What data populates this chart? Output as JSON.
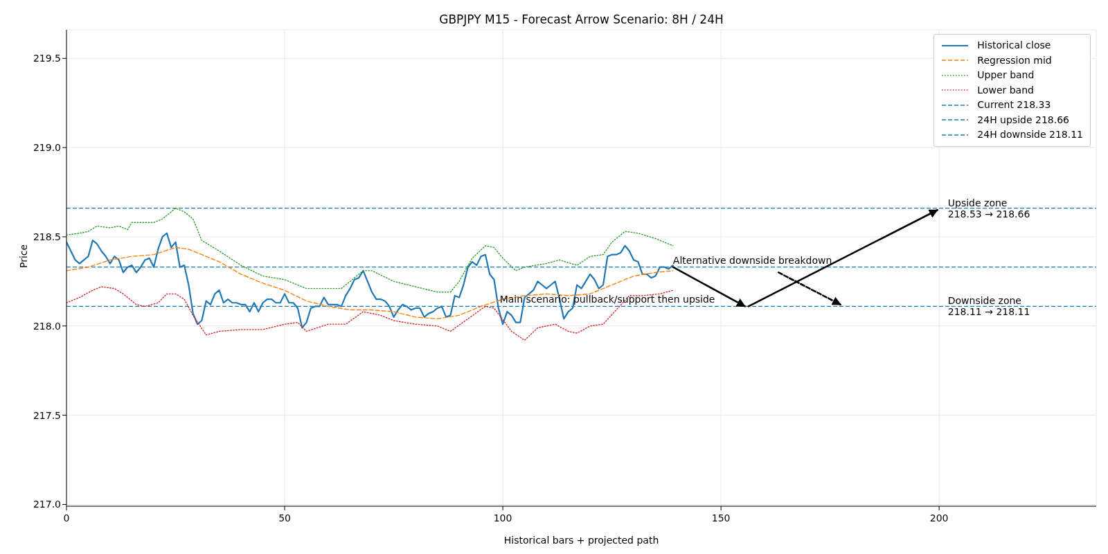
{
  "chart_data": {
    "type": "line",
    "title": "GBPJPY M15 - Forecast Arrow Scenario: 8H / 24H",
    "xlabel": "Historical bars + projected path",
    "ylabel": "Price",
    "x": [
      0,
      1,
      2,
      3,
      4,
      5,
      6,
      7,
      8,
      9,
      10,
      11,
      12,
      13,
      14,
      15,
      16,
      17,
      18,
      19,
      20,
      21,
      22,
      23,
      24,
      25,
      26,
      27,
      28,
      29,
      30,
      31,
      32,
      33,
      34,
      35,
      36,
      37,
      38,
      39,
      40,
      41,
      42,
      43,
      44,
      45,
      46,
      47,
      48,
      49,
      50,
      51,
      52,
      53,
      54,
      55,
      56,
      57,
      58,
      59,
      60,
      61,
      62,
      63,
      64,
      65,
      66,
      67,
      68,
      69,
      70,
      71,
      72,
      73,
      74,
      75,
      76,
      77,
      78,
      79,
      80,
      81,
      82,
      83,
      84,
      85,
      86,
      87,
      88,
      89,
      90,
      91,
      92,
      93,
      94,
      95,
      96,
      97,
      98,
      99,
      100,
      101,
      102,
      103,
      104,
      105,
      106,
      107,
      108,
      109,
      110,
      111,
      112,
      113,
      114,
      115,
      116,
      117,
      118,
      119,
      120,
      121,
      122,
      123,
      124,
      125,
      126,
      127,
      128,
      129,
      130,
      131,
      132,
      133,
      134,
      135,
      136,
      137,
      138,
      139
    ],
    "series": [
      {
        "name": "Historical close",
        "color": "#1f77b4",
        "line_style": "solid",
        "values": [
          218.47,
          218.42,
          218.37,
          218.35,
          218.37,
          218.39,
          218.48,
          218.46,
          218.42,
          218.39,
          218.35,
          218.39,
          218.37,
          218.3,
          218.33,
          218.34,
          218.3,
          218.33,
          218.37,
          218.38,
          218.33,
          218.43,
          218.5,
          218.52,
          218.44,
          218.47,
          218.33,
          218.34,
          218.23,
          218.07,
          218.01,
          218.03,
          218.14,
          218.12,
          218.18,
          218.2,
          218.13,
          218.15,
          218.13,
          218.13,
          218.12,
          218.12,
          218.08,
          218.13,
          218.08,
          218.13,
          218.15,
          218.15,
          218.13,
          218.13,
          218.18,
          218.13,
          218.13,
          218.1,
          217.99,
          218.02,
          218.1,
          218.11,
          218.11,
          218.16,
          218.12,
          218.12,
          218.12,
          218.11,
          218.17,
          218.21,
          218.26,
          218.27,
          218.31,
          218.25,
          218.19,
          218.15,
          218.15,
          218.14,
          218.11,
          218.05,
          218.09,
          218.12,
          218.11,
          218.09,
          218.1,
          218.1,
          218.05,
          218.07,
          218.08,
          218.1,
          218.11,
          218.05,
          218.06,
          218.17,
          218.16,
          218.23,
          218.33,
          218.36,
          218.34,
          218.39,
          218.4,
          218.29,
          218.26,
          218.1,
          218.01,
          218.08,
          218.06,
          218.02,
          218.02,
          218.16,
          218.18,
          218.2,
          218.25,
          218.23,
          218.21,
          218.23,
          218.25,
          218.15,
          218.04,
          218.08,
          218.1,
          218.23,
          218.21,
          218.25,
          218.29,
          218.26,
          218.21,
          218.23,
          218.39,
          218.4,
          218.4,
          218.41,
          218.45,
          218.42,
          218.37,
          218.36,
          218.29,
          218.29,
          218.27,
          218.28,
          218.33,
          218.33,
          218.32,
          218.34
        ]
      },
      {
        "name": "Regression mid",
        "color": "#ff7f0e",
        "line_style": "dashed",
        "x": [
          0,
          5,
          10,
          15,
          20,
          25,
          28,
          30,
          35,
          40,
          45,
          50,
          55,
          60,
          65,
          70,
          75,
          80,
          85,
          90,
          95,
          100,
          105,
          110,
          115,
          120,
          125,
          130,
          135,
          139
        ],
        "values": [
          218.31,
          218.33,
          218.37,
          218.39,
          218.4,
          218.44,
          218.43,
          218.41,
          218.36,
          218.29,
          218.24,
          218.2,
          218.14,
          218.11,
          218.09,
          218.09,
          218.08,
          218.05,
          218.04,
          218.06,
          218.11,
          218.15,
          218.17,
          218.18,
          218.17,
          218.18,
          218.23,
          218.28,
          218.3,
          218.31
        ]
      },
      {
        "name": "Upper band",
        "color": "#2ca02c",
        "line_style": "dotted",
        "x": [
          0,
          3,
          5,
          7,
          10,
          12,
          14,
          15,
          20,
          22,
          25,
          27,
          29,
          31,
          35,
          40,
          45,
          50,
          55,
          60,
          63,
          65,
          68,
          70,
          75,
          80,
          85,
          88,
          90,
          93,
          96,
          98,
          100,
          103,
          105,
          110,
          113,
          117,
          120,
          123,
          125,
          128,
          131,
          135,
          139
        ],
        "values": [
          218.51,
          218.52,
          218.53,
          218.56,
          218.55,
          218.56,
          218.54,
          218.58,
          218.58,
          218.6,
          218.66,
          218.64,
          218.6,
          218.48,
          218.42,
          218.34,
          218.28,
          218.26,
          218.21,
          218.21,
          218.21,
          218.25,
          218.31,
          218.31,
          218.25,
          218.22,
          218.19,
          218.19,
          218.25,
          218.38,
          218.45,
          218.44,
          218.38,
          218.31,
          218.33,
          218.35,
          218.37,
          218.34,
          218.39,
          218.4,
          218.47,
          218.53,
          218.52,
          218.49,
          218.45
        ]
      },
      {
        "name": "Lower band",
        "color": "#d62728",
        "line_style": "dotted",
        "x": [
          0,
          3,
          6,
          8,
          11,
          13,
          16,
          18,
          21,
          23,
          25,
          27,
          29,
          32,
          35,
          40,
          45,
          50,
          53,
          55,
          60,
          64,
          68,
          72,
          75,
          80,
          85,
          88,
          92,
          96,
          98,
          102,
          105,
          108,
          112,
          115,
          117,
          120,
          123,
          126,
          129,
          132,
          136,
          139
        ],
        "values": [
          218.13,
          218.16,
          218.2,
          218.22,
          218.21,
          218.18,
          218.12,
          218.11,
          218.13,
          218.18,
          218.18,
          218.15,
          218.06,
          217.95,
          217.97,
          217.98,
          217.98,
          218.01,
          218.02,
          217.97,
          218.01,
          218.01,
          218.08,
          218.06,
          218.03,
          218.01,
          218.0,
          217.97,
          218.04,
          218.11,
          218.1,
          217.97,
          217.92,
          217.99,
          218.01,
          217.97,
          217.96,
          218.0,
          218.01,
          218.09,
          218.17,
          218.17,
          218.18,
          218.2
        ]
      },
      {
        "type": "line",
        "color": "#000000",
        "line_style": "solid",
        "x": [
          139,
          155.5
        ],
        "values": [
          218.33,
          218.11
        ]
      },
      {
        "type": "line",
        "color": "#000000",
        "line_style": "solid",
        "x": [
          156.3,
          199.6
        ],
        "values": [
          218.11,
          218.65
        ]
      },
      {
        "type": "line",
        "color": "#000000",
        "line_style": "dashed",
        "x": [
          163.2,
          177.4
        ],
        "values": [
          218.3,
          218.12
        ]
      }
    ],
    "ref_lines": [
      {
        "axis": "y",
        "value": 218.33,
        "label": "Current 218.33",
        "color": "#1f77b4",
        "line_style": "dashed"
      },
      {
        "axis": "y",
        "value": 218.66,
        "label": "24H upside 218.66",
        "color": "#1f77b4",
        "line_style": "dashed"
      },
      {
        "axis": "y",
        "value": 218.11,
        "label": "24H downside 218.11",
        "color": "#1f77b4",
        "line_style": "dashed"
      }
    ],
    "annotations": [
      {
        "text": "Main scenario: pullback/support then upside",
        "x": 99.3,
        "y": 218.11
      },
      {
        "text": "Alternative downside breakdown",
        "x": 139,
        "y": 218.33
      },
      {
        "text": "Upside zone\n218.53 → 218.66",
        "x": 202,
        "y": 218.66
      },
      {
        "text": "Downside zone\n218.11 → 218.11",
        "x": 202,
        "y": 218.11
      }
    ],
    "xlim": [
      0,
      236
    ],
    "xticks": [
      0,
      50,
      100,
      150,
      200
    ],
    "ylim": [
      216.99,
      219.66
    ],
    "yticks": [
      {
        "value": 217,
        "label": "217.0"
      },
      {
        "value": 217.5,
        "label": "217.5"
      },
      {
        "value": 218,
        "label": "218.0"
      },
      {
        "value": 218.5,
        "label": "218.5"
      },
      {
        "value": 219,
        "label": "219.0"
      },
      {
        "value": 219.5,
        "label": "219.5"
      }
    ],
    "grid": true,
    "legend": "top right",
    "marker": "none"
  }
}
